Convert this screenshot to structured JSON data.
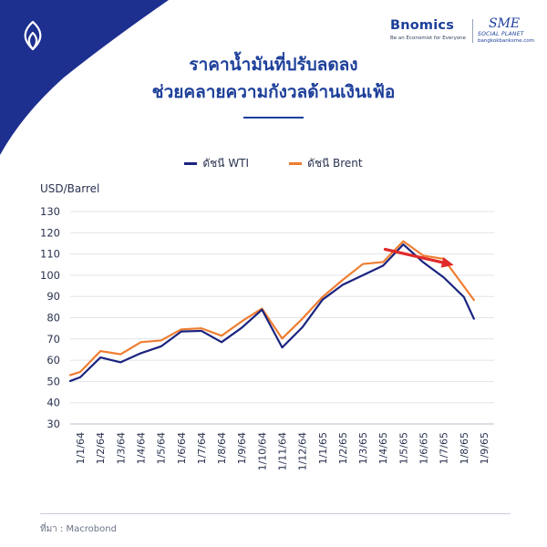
{
  "brand": {
    "name": "Bnomics",
    "tagline": "Be an Economist for Everyone",
    "partner_name": "SME",
    "partner_sub": "SOCIAL PLANET",
    "partner_url": "bangkokbanksme.com"
  },
  "title_line1": "ราคาน้ำมันที่ปรับลดลง",
  "title_line2": "ช่วยคลายความกังวลด้านเงินเฟ้อ",
  "source": "ที่มา : Macrobond",
  "colors": {
    "wti": "#1a237e",
    "brent": "#ee7d31",
    "arrow": "#e02a2a",
    "title": "#1d3f9a"
  },
  "chart_data": {
    "type": "line",
    "ylabel": "USD/Barrel",
    "ylim": [
      30,
      130
    ],
    "yticks": [
      30,
      40,
      50,
      60,
      70,
      80,
      90,
      100,
      110,
      120,
      130
    ],
    "grid": true,
    "legend_position": "top-center",
    "categories": [
      "1/1/64",
      "1/2/64",
      "1/3/64",
      "1/4/64",
      "1/5/64",
      "1/6/64",
      "1/7/64",
      "1/8/64",
      "1/9/64",
      "1/10/64",
      "1/11/64",
      "1/12/64",
      "1/1/65",
      "1/2/65",
      "1/3/65",
      "1/4/65",
      "1/5/65",
      "1/6/65",
      "1/7/65",
      "1/8/65",
      "1/9/65"
    ],
    "x": [
      0,
      0.5,
      1.5,
      2.5,
      3.5,
      4.5,
      5.5,
      6.5,
      7.5,
      8.5,
      9.5,
      10.5,
      11.5,
      12.5,
      13.5,
      14.5,
      15.5,
      16.5,
      17.5,
      18.5,
      19.5,
      20
    ],
    "series": [
      {
        "name": "ดัชนี WTI",
        "values": [
          50.2,
          52.0,
          61.3,
          59.0,
          63.3,
          66.5,
          73.5,
          73.8,
          68.5,
          75.3,
          83.8,
          66.0,
          75.5,
          88.5,
          95.5,
          100.0,
          104.5,
          114.5,
          106.0,
          99.0,
          89.8,
          79.5
        ]
      },
      {
        "name": "ดัชนี Brent",
        "values": [
          53.0,
          54.5,
          64.3,
          62.8,
          68.5,
          69.3,
          74.5,
          75.0,
          71.5,
          78.3,
          84.3,
          70.2,
          79.5,
          89.8,
          97.8,
          105.3,
          106.2,
          116.0,
          109.2,
          107.7,
          94.8,
          88.3
        ]
      }
    ],
    "annotation": "trend-down-arrow"
  }
}
